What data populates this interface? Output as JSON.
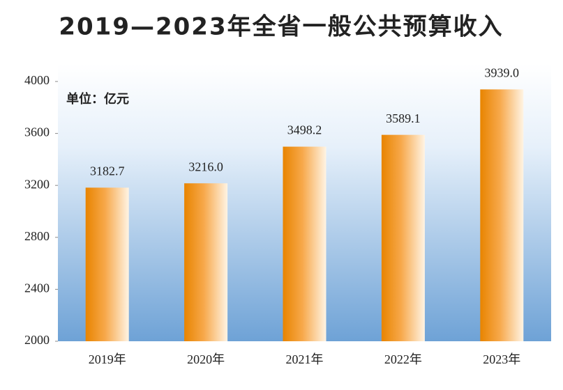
{
  "chart_data": {
    "type": "bar",
    "title": "2019—2023年全省一般公共预算收入",
    "unit_label": "单位：亿元",
    "categories": [
      "2019年",
      "2020年",
      "2021年",
      "2022年",
      "2023年"
    ],
    "values": [
      3182.7,
      3216.0,
      3498.2,
      3589.1,
      3939.0
    ],
    "value_labels": [
      "3182.7",
      "3216.0",
      "3498.2",
      "3589.1",
      "3939.0"
    ],
    "color": "#f08c00",
    "ylim": [
      2000,
      4000
    ],
    "yticks": [
      2000,
      2400,
      2800,
      3200,
      3600,
      4000
    ]
  }
}
